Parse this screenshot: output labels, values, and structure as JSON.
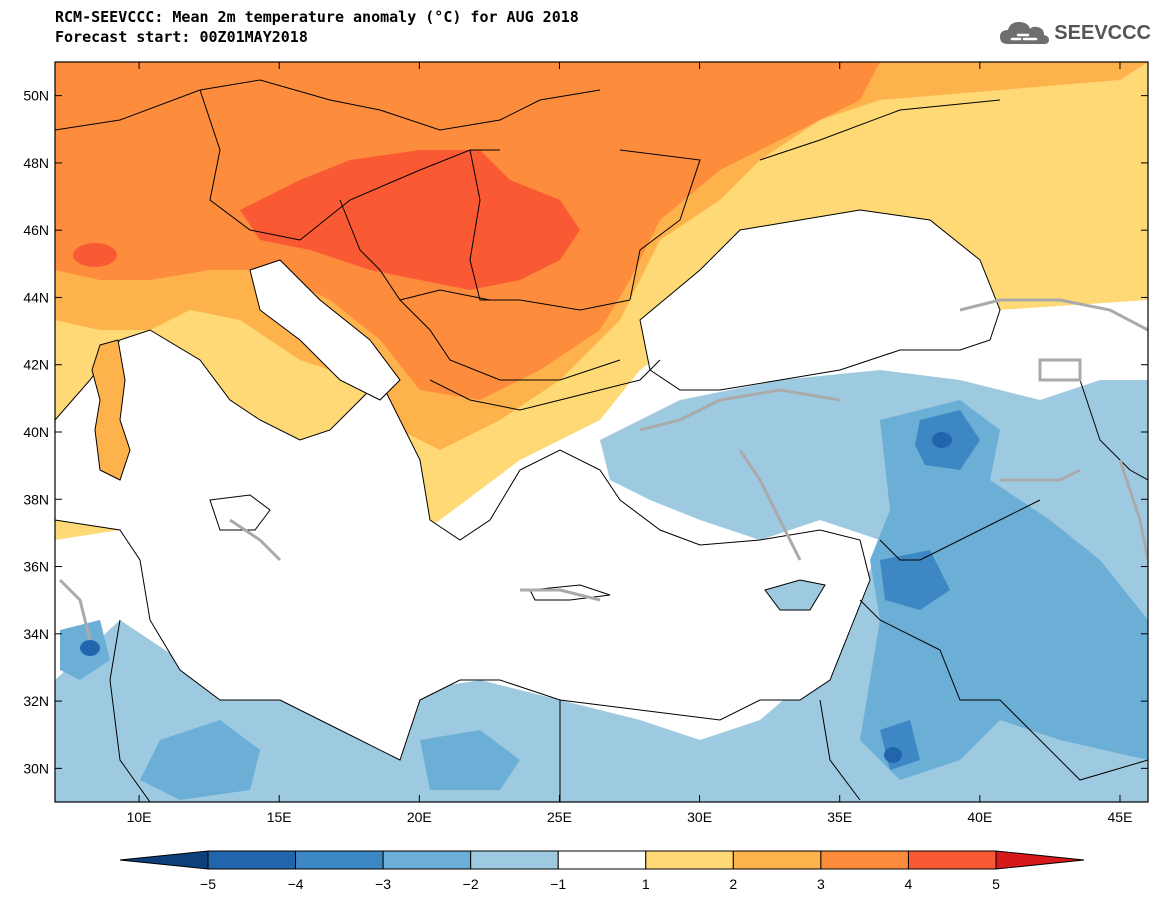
{
  "header": {
    "title": "RCM-SEEVCCC: Mean 2m temperature anomaly (°C) for AUG 2018",
    "subtitle": "Forecast start: 00Z01MAY2018"
  },
  "logo": {
    "text": "SEEVCCC",
    "icon": "cloud-icon"
  },
  "map": {
    "lon_range": [
      7,
      46
    ],
    "lat_range": [
      29,
      51
    ],
    "lat_labels": [
      "50N",
      "48N",
      "46N",
      "44N",
      "42N",
      "40N",
      "38N",
      "36N",
      "34N",
      "32N",
      "30N"
    ],
    "lat_values": [
      50,
      48,
      46,
      44,
      42,
      40,
      38,
      36,
      34,
      32,
      30
    ],
    "lon_labels": [
      "10E",
      "15E",
      "20E",
      "25E",
      "30E",
      "35E",
      "40E",
      "45E"
    ],
    "lon_values": [
      10,
      15,
      20,
      25,
      30,
      35,
      40,
      45
    ]
  },
  "colorbar": {
    "labels": [
      "−5",
      "−4",
      "−3",
      "−2",
      "−1",
      "1",
      "2",
      "3",
      "4",
      "5"
    ],
    "colors": [
      "#0d3f7a",
      "#2166ac",
      "#3d87c4",
      "#6baed6",
      "#9ecae1",
      "#ffffff",
      "#fed976",
      "#feb24c",
      "#fd8d3c",
      "#f95a34",
      "#d7191c"
    ]
  }
}
